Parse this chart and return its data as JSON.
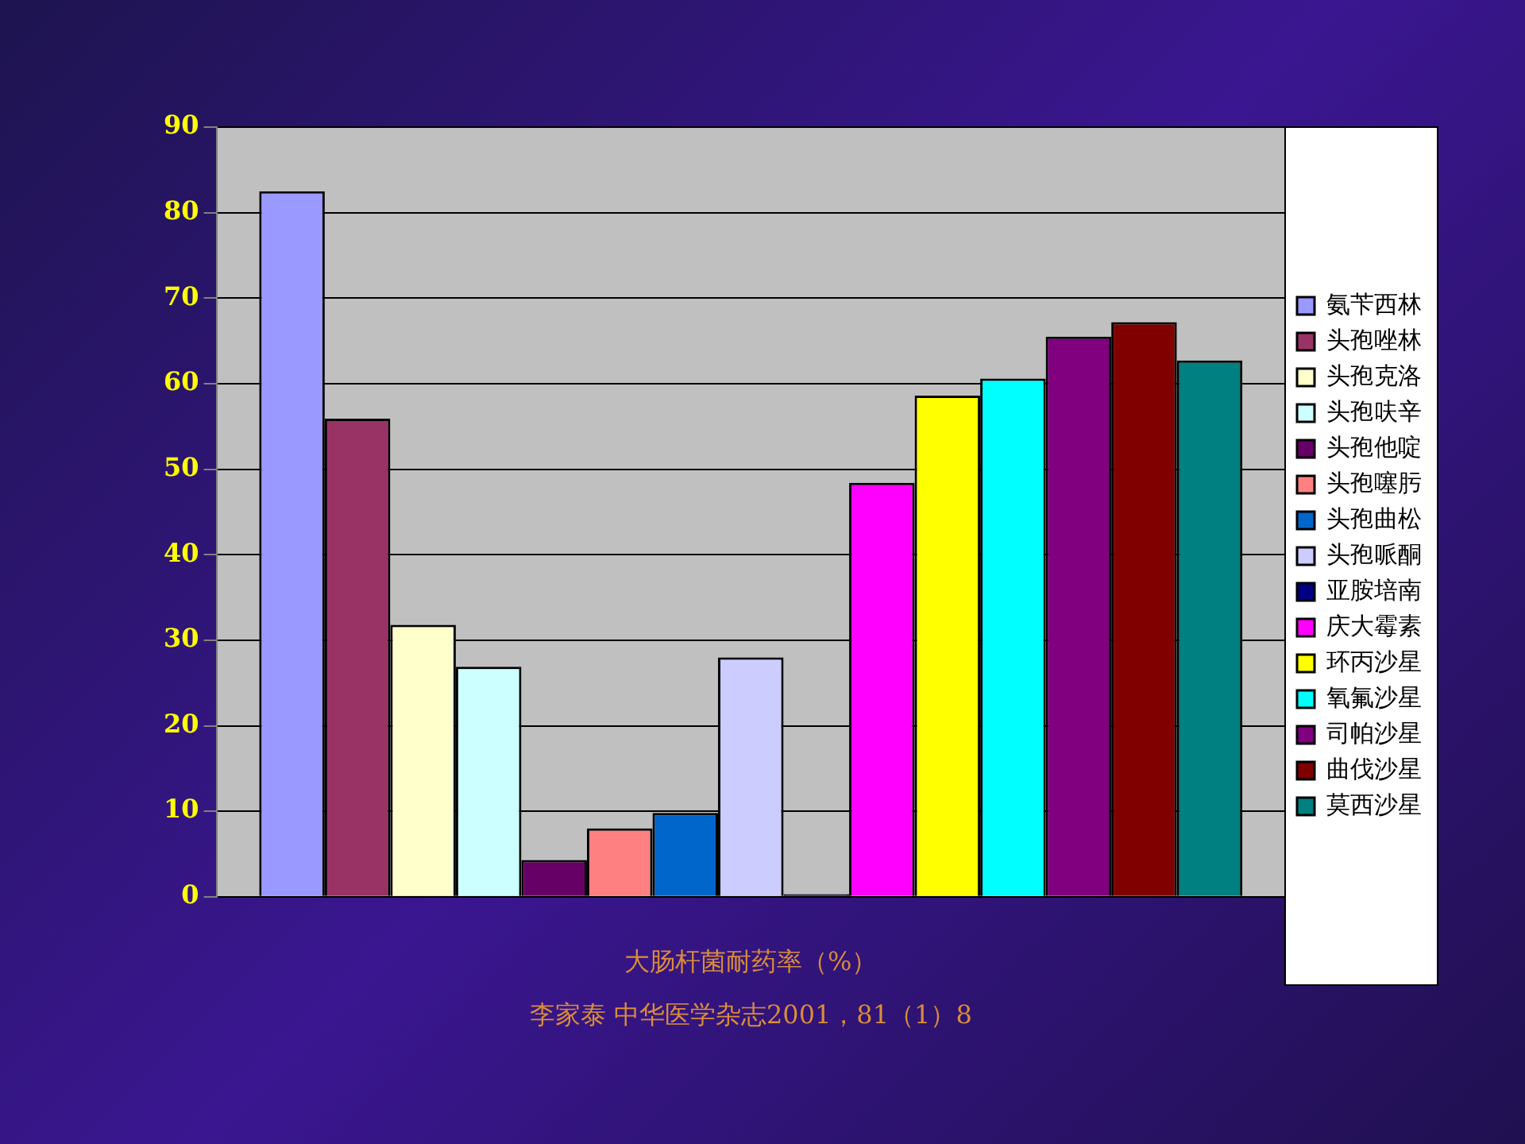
{
  "chart_data": {
    "type": "bar",
    "xlabel": "大肠杆菌耐药率（%）",
    "categories": [
      null
    ],
    "series": [
      {
        "name": "氨苄西林",
        "color": "#9999ff",
        "values": [
          82.5
        ]
      },
      {
        "name": "头孢唑林",
        "color": "#993366",
        "values": [
          55.9
        ]
      },
      {
        "name": "头孢克洛",
        "color": "#ffffcc",
        "values": [
          31.8
        ]
      },
      {
        "name": "头孢呋辛",
        "color": "#ccffff",
        "values": [
          26.9
        ]
      },
      {
        "name": "头孢他啶",
        "color": "#660066",
        "values": [
          4.3
        ]
      },
      {
        "name": "头孢噻肟",
        "color": "#ff8080",
        "values": [
          8.0
        ]
      },
      {
        "name": "头孢曲松",
        "color": "#0066cc",
        "values": [
          9.8
        ]
      },
      {
        "name": "头孢哌酮",
        "color": "#ccccff",
        "values": [
          28.0
        ]
      },
      {
        "name": "亚胺培南",
        "color": "#000080",
        "values": [
          0.3
        ]
      },
      {
        "name": "庆大霉素",
        "color": "#ff00ff",
        "values": [
          48.4
        ]
      },
      {
        "name": "环丙沙星",
        "color": "#ffff00",
        "values": [
          58.6
        ]
      },
      {
        "name": "氧氟沙星",
        "color": "#00ffff",
        "values": [
          60.6
        ]
      },
      {
        "name": "司帕沙星",
        "color": "#800080",
        "values": [
          65.5
        ]
      },
      {
        "name": "曲伐沙星",
        "color": "#800000",
        "values": [
          67.2
        ]
      },
      {
        "name": "莫西沙星",
        "color": "#008080",
        "values": [
          62.7
        ]
      }
    ],
    "ylim": [
      0,
      90
    ],
    "yticks": [
      0,
      10,
      20,
      30,
      40,
      50,
      60,
      70,
      80,
      90
    ],
    "grid": "y",
    "legend": "right",
    "annotations": [
      "李家泰 中华医学杂志2001，81（1）8"
    ]
  }
}
